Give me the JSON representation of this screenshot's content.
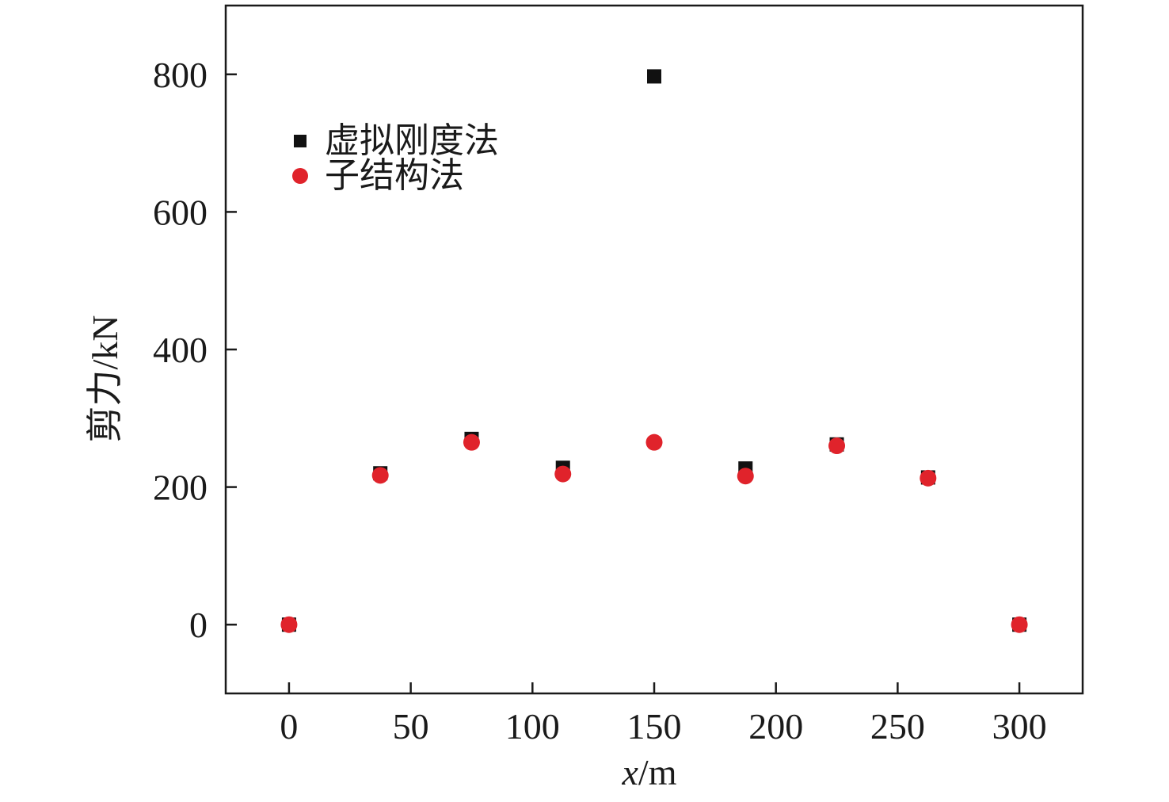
{
  "chart_data": {
    "type": "scatter",
    "xlabel_italic": "x",
    "xlabel_unit": "/m",
    "ylabel": "剪力/kN",
    "xlim": [
      -26,
      326
    ],
    "ylim": [
      -100,
      900
    ],
    "xticks": [
      0,
      50,
      100,
      150,
      200,
      250,
      300
    ],
    "yticks": [
      0,
      200,
      400,
      600,
      800
    ],
    "grid": false,
    "legend_position": "top-left",
    "series": [
      {
        "name": "虚拟刚度法",
        "marker": "square",
        "color": "#111111",
        "x": [
          0,
          37.5,
          75,
          112.5,
          150,
          187.5,
          225,
          262.5,
          300
        ],
        "y": [
          0,
          220,
          270,
          228,
          797,
          227,
          262,
          214,
          0
        ]
      },
      {
        "name": "子结构法",
        "marker": "circle",
        "color": "#e0232b",
        "x": [
          0,
          37.5,
          75,
          112.5,
          150,
          187.5,
          225,
          262.5,
          300
        ],
        "y": [
          0,
          217,
          265,
          219,
          265,
          216,
          260,
          213,
          0
        ]
      }
    ]
  }
}
